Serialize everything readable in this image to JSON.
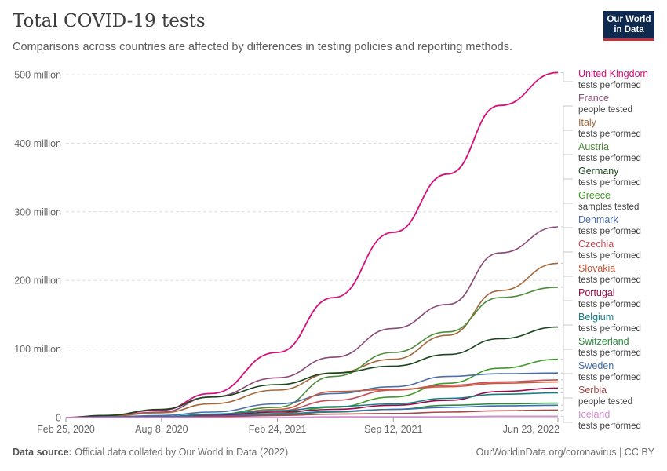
{
  "header": {
    "title": "Total COVID-19 tests",
    "subtitle": "Comparisons across countries are affected by differences in testing policies and reporting methods.",
    "logo_line1": "Our World",
    "logo_line2": "in Data"
  },
  "footer": {
    "source_label": "Data source:",
    "source_text": "Official data collated by Our World in Data (2022)",
    "credit": "OurWorldinData.org/coronavirus | CC BY"
  },
  "chart_data": {
    "type": "line",
    "title": "Total COVID-19 tests",
    "x_tick_labels": [
      "Feb 25, 2020",
      "Aug 8, 2020",
      "Feb 24, 2021",
      "Sep 12, 2021",
      "Jun 23, 2022"
    ],
    "y_ticks": [
      0,
      100,
      200,
      300,
      400,
      500
    ],
    "y_tick_labels": [
      "0",
      "100 million",
      "200 million",
      "300 million",
      "400 million",
      "500 million"
    ],
    "ylim": [
      0,
      500
    ],
    "yunit": "million",
    "grid": "horizontal dashed",
    "legend": "right",
    "x": [
      "2020-02-25",
      "2020-05-01",
      "2020-08-08",
      "2020-11-01",
      "2021-02-24",
      "2021-06-01",
      "2021-09-12",
      "2021-12-15",
      "2022-03-15",
      "2022-06-23"
    ],
    "series": [
      {
        "name": "United Kingdom",
        "method": "tests performed",
        "color": "#d6107b",
        "values": [
          0,
          3,
          11,
          35,
          95,
          175,
          270,
          355,
          455,
          503
        ]
      },
      {
        "name": "France",
        "method": "people tested",
        "color": "#8a4a77",
        "values": [
          0,
          2,
          8,
          30,
          58,
          88,
          130,
          165,
          240,
          278
        ]
      },
      {
        "name": "Italy",
        "method": "tests performed",
        "color": "#a3693b",
        "values": [
          0,
          2,
          7,
          20,
          40,
          65,
          85,
          120,
          185,
          225
        ]
      },
      {
        "name": "Austria",
        "method": "tests performed",
        "color": "#4d8c3c",
        "values": [
          0,
          0,
          1,
          4,
          15,
          60,
          95,
          125,
          175,
          190
        ]
      },
      {
        "name": "Germany",
        "method": "tests performed",
        "color": "#19451c",
        "values": [
          0,
          3,
          12,
          30,
          48,
          65,
          75,
          92,
          115,
          132
        ]
      },
      {
        "name": "Greece",
        "method": "samples tested",
        "color": "#3f9a28",
        "values": [
          0,
          0,
          1,
          3,
          6,
          15,
          30,
          50,
          72,
          85
        ]
      },
      {
        "name": "Denmark",
        "method": "tests performed",
        "color": "#4c6fa8",
        "values": [
          0,
          1,
          3,
          8,
          20,
          35,
          45,
          60,
          64,
          65
        ]
      },
      {
        "name": "Czechia",
        "method": "tests performed",
        "color": "#c54f5a",
        "values": [
          0,
          0,
          1,
          4,
          10,
          25,
          40,
          47,
          52,
          55
        ]
      },
      {
        "name": "Slovakia",
        "method": "tests performed",
        "color": "#c75a3a",
        "values": [
          0,
          0,
          0,
          2,
          12,
          38,
          41,
          45,
          50,
          52
        ]
      },
      {
        "name": "Portugal",
        "method": "tests performed",
        "color": "#9b0b48",
        "values": [
          0,
          0,
          1,
          3,
          8,
          12,
          18,
          25,
          38,
          43
        ]
      },
      {
        "name": "Belgium",
        "method": "tests performed",
        "color": "#167d87",
        "values": [
          0,
          0,
          1,
          5,
          10,
          16,
          20,
          28,
          34,
          36
        ]
      },
      {
        "name": "Switzerland",
        "method": "tests performed",
        "color": "#2b8b3a",
        "values": [
          0,
          0,
          1,
          2,
          4,
          8,
          12,
          18,
          20,
          21
        ]
      },
      {
        "name": "Sweden",
        "method": "tests performed",
        "color": "#3e6cb0",
        "values": [
          0,
          0,
          1,
          2,
          5,
          9,
          12,
          15,
          17,
          18
        ]
      },
      {
        "name": "Serbia",
        "method": "people tested",
        "color": "#a64a4a",
        "values": [
          0,
          0,
          0,
          1,
          3,
          5,
          6,
          8,
          10,
          11
        ]
      },
      {
        "name": "Iceland",
        "method": "tests performed",
        "color": "#d48cd0",
        "values": [
          0,
          0,
          0,
          0,
          0,
          1,
          1,
          1,
          2,
          2
        ]
      }
    ]
  }
}
